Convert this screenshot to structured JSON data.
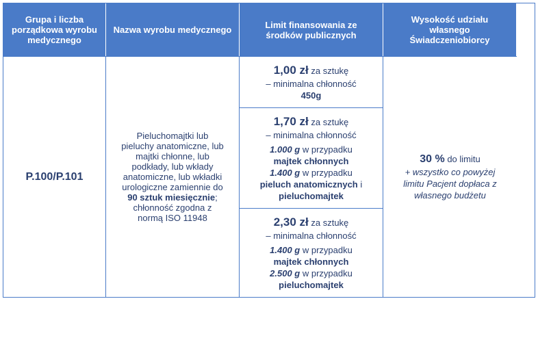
{
  "colors": {
    "header_bg": "#4a7bc8",
    "header_text": "#ffffff",
    "body_text": "#2a3f6f",
    "border": "#4a7bc8",
    "body_bg": "#ffffff"
  },
  "headers": {
    "col1": "Grupa i liczba porządkowa wyrobu medycznego",
    "col2": "Nazwa wyrobu medycznego",
    "col3": "Limit finansowania ze środków publicznych",
    "col4": "Wysokość udziału własnego Świadczeniobiorcy"
  },
  "row": {
    "group": "P.100/P.101",
    "product_name_lines": {
      "l1": "Pieluchomajtki lub",
      "l2": "pieluchy anatomiczne, lub",
      "l3": "majtki chłonne, lub",
      "l4": "podkłady, lub wkłady",
      "l5": "anatomiczne, lub wkładki",
      "l6": "urologiczne zamiennie do",
      "l7_bold": "90 sztuk miesięcznie",
      "l7_tail": ";",
      "l8": "chłonność zgodna z",
      "l9": "normą ISO 11948"
    },
    "financing": {
      "tier1": {
        "price": "1,00 zł",
        "per": "za sztukę",
        "absorb_label": "– minimalna chłonność",
        "absorb_value": "450g"
      },
      "tier2": {
        "price": "1,70 zł",
        "per": "za sztukę",
        "absorb_label": "– minimalna chłonność",
        "g1": "1.000 g",
        "g1_text": "w przypadku",
        "g1_prod": "majtek chłonnych",
        "g2": "1.400 g",
        "g2_text": "w przypadku",
        "g2_prod": "pieluch anatomicznych",
        "g2_and": "i",
        "g2_prod2": "pieluchomajtek"
      },
      "tier3": {
        "price": "2,30 zł",
        "per": "za sztukę",
        "absorb_label": "– minimalna chłonność",
        "g1": "1.400 g",
        "g1_text": "w przypadku",
        "g1_prod": "majtek chłonnych",
        "g2": "2.500 g",
        "g2_text": "w przypadku",
        "g2_prod": "pieluchomajtek"
      }
    },
    "copay": {
      "percent": "30 %",
      "percent_tail": "do limitu",
      "note_l1": "+ wszystko co powyżej",
      "note_l2": "limitu Pacjent dopłaca z",
      "note_l3": "własnego budżetu"
    }
  }
}
